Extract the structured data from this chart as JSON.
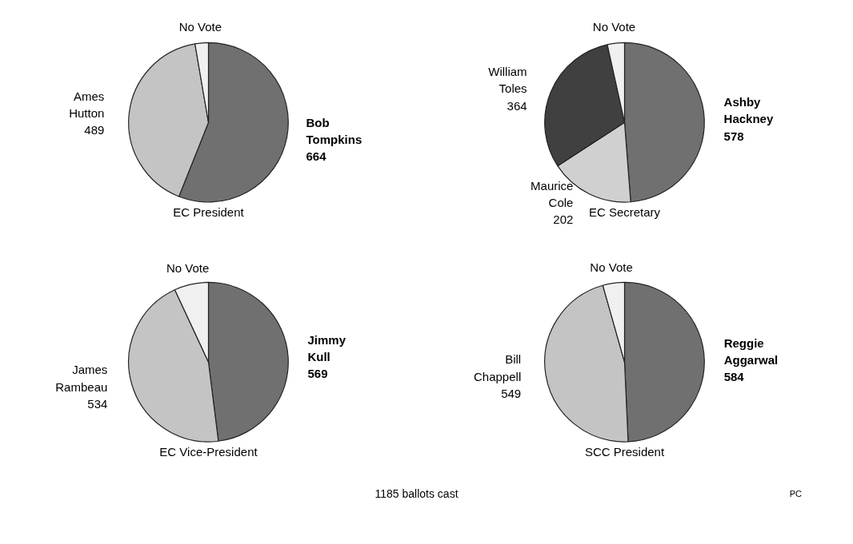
{
  "chart_data": [
    {
      "type": "pie",
      "title": "EC President",
      "categories": [
        "Bob Tompkins",
        "Ames Hutton",
        "No Vote"
      ],
      "values": [
        664,
        489,
        32
      ],
      "colors": [
        "#707070",
        "#c4c4c4",
        "#f0f0f0"
      ],
      "value_labels": [
        "664",
        "489",
        null
      ]
    },
    {
      "type": "pie",
      "title": "EC Secretary",
      "categories": [
        "Ashby Hackney",
        "Maurice Cole",
        "William Toles",
        "No Vote"
      ],
      "values": [
        578,
        202,
        364,
        41
      ],
      "colors": [
        "#707070",
        "#d0d0d0",
        "#404040",
        "#f0f0f0"
      ],
      "value_labels": [
        "578",
        "202",
        "364",
        null
      ]
    },
    {
      "type": "pie",
      "title": "EC Vice-President",
      "categories": [
        "Jimmy Kull",
        "James Rambeau",
        "No Vote"
      ],
      "values": [
        569,
        534,
        82
      ],
      "colors": [
        "#707070",
        "#c4c4c4",
        "#f0f0f0"
      ],
      "value_labels": [
        "569",
        "534",
        null
      ]
    },
    {
      "type": "pie",
      "title": "SCC President",
      "categories": [
        "Reggie Aggarwal",
        "Bill Chappell",
        "No Vote"
      ],
      "values": [
        584,
        549,
        52
      ],
      "colors": [
        "#707070",
        "#c4c4c4",
        "#f0f0f0"
      ],
      "value_labels": [
        "584",
        "549",
        null
      ],
      "annotations": [
        "1185 ballots cast",
        "PC"
      ]
    }
  ]
}
